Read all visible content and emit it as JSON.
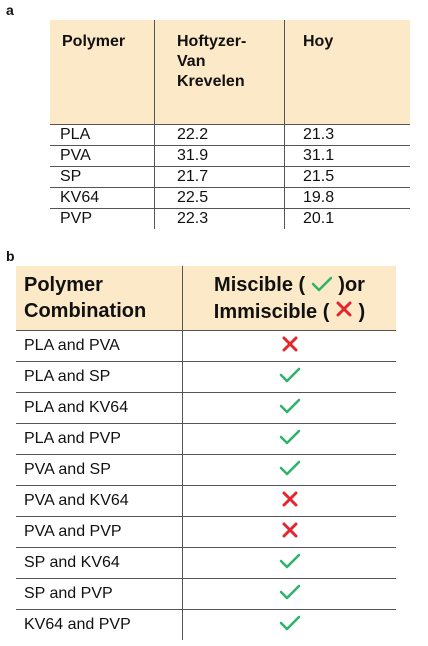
{
  "panel_labels": {
    "a": "a",
    "b": "b"
  },
  "table_a": {
    "headers": [
      "Polymer",
      "Hoftyzer-\nVan\nKrevelen",
      "Hoy"
    ],
    "rows": [
      [
        "PLA",
        "22.2",
        "21.3"
      ],
      [
        "PVA",
        "31.9",
        "31.1"
      ],
      [
        "SP",
        "21.7",
        "21.5"
      ],
      [
        "KV64",
        "22.5",
        "19.8"
      ],
      [
        "PVP",
        "22.3",
        "20.1"
      ]
    ]
  },
  "table_b": {
    "header_col1_line1": "Polymer",
    "header_col1_line2": "Combination",
    "header_col2_line1_a": "Miscible (",
    "header_col2_line1_b": ")or",
    "header_col2_line2_a": "Immiscible (",
    "header_col2_line2_b": ")",
    "rows": [
      {
        "pair": "PLA and PVA",
        "result": "immiscible"
      },
      {
        "pair": "PLA and SP",
        "result": "miscible"
      },
      {
        "pair": "PLA and KV64",
        "result": "miscible"
      },
      {
        "pair": "PLA and PVP",
        "result": "miscible"
      },
      {
        "pair": "PVA and SP",
        "result": "miscible"
      },
      {
        "pair": "PVA and KV64",
        "result": "immiscible"
      },
      {
        "pair": "PVA and PVP",
        "result": "immiscible"
      },
      {
        "pair": "SP and KV64",
        "result": "miscible"
      },
      {
        "pair": "SP and PVP",
        "result": "miscible"
      },
      {
        "pair": "KV64 and PVP",
        "result": "miscible"
      }
    ]
  },
  "icons": {
    "miscible": "check-icon",
    "immiscible": "cross-icon"
  },
  "colors": {
    "header_fill": "#fbe9c7",
    "check": "#2eb36b",
    "cross": "#e3262b"
  }
}
